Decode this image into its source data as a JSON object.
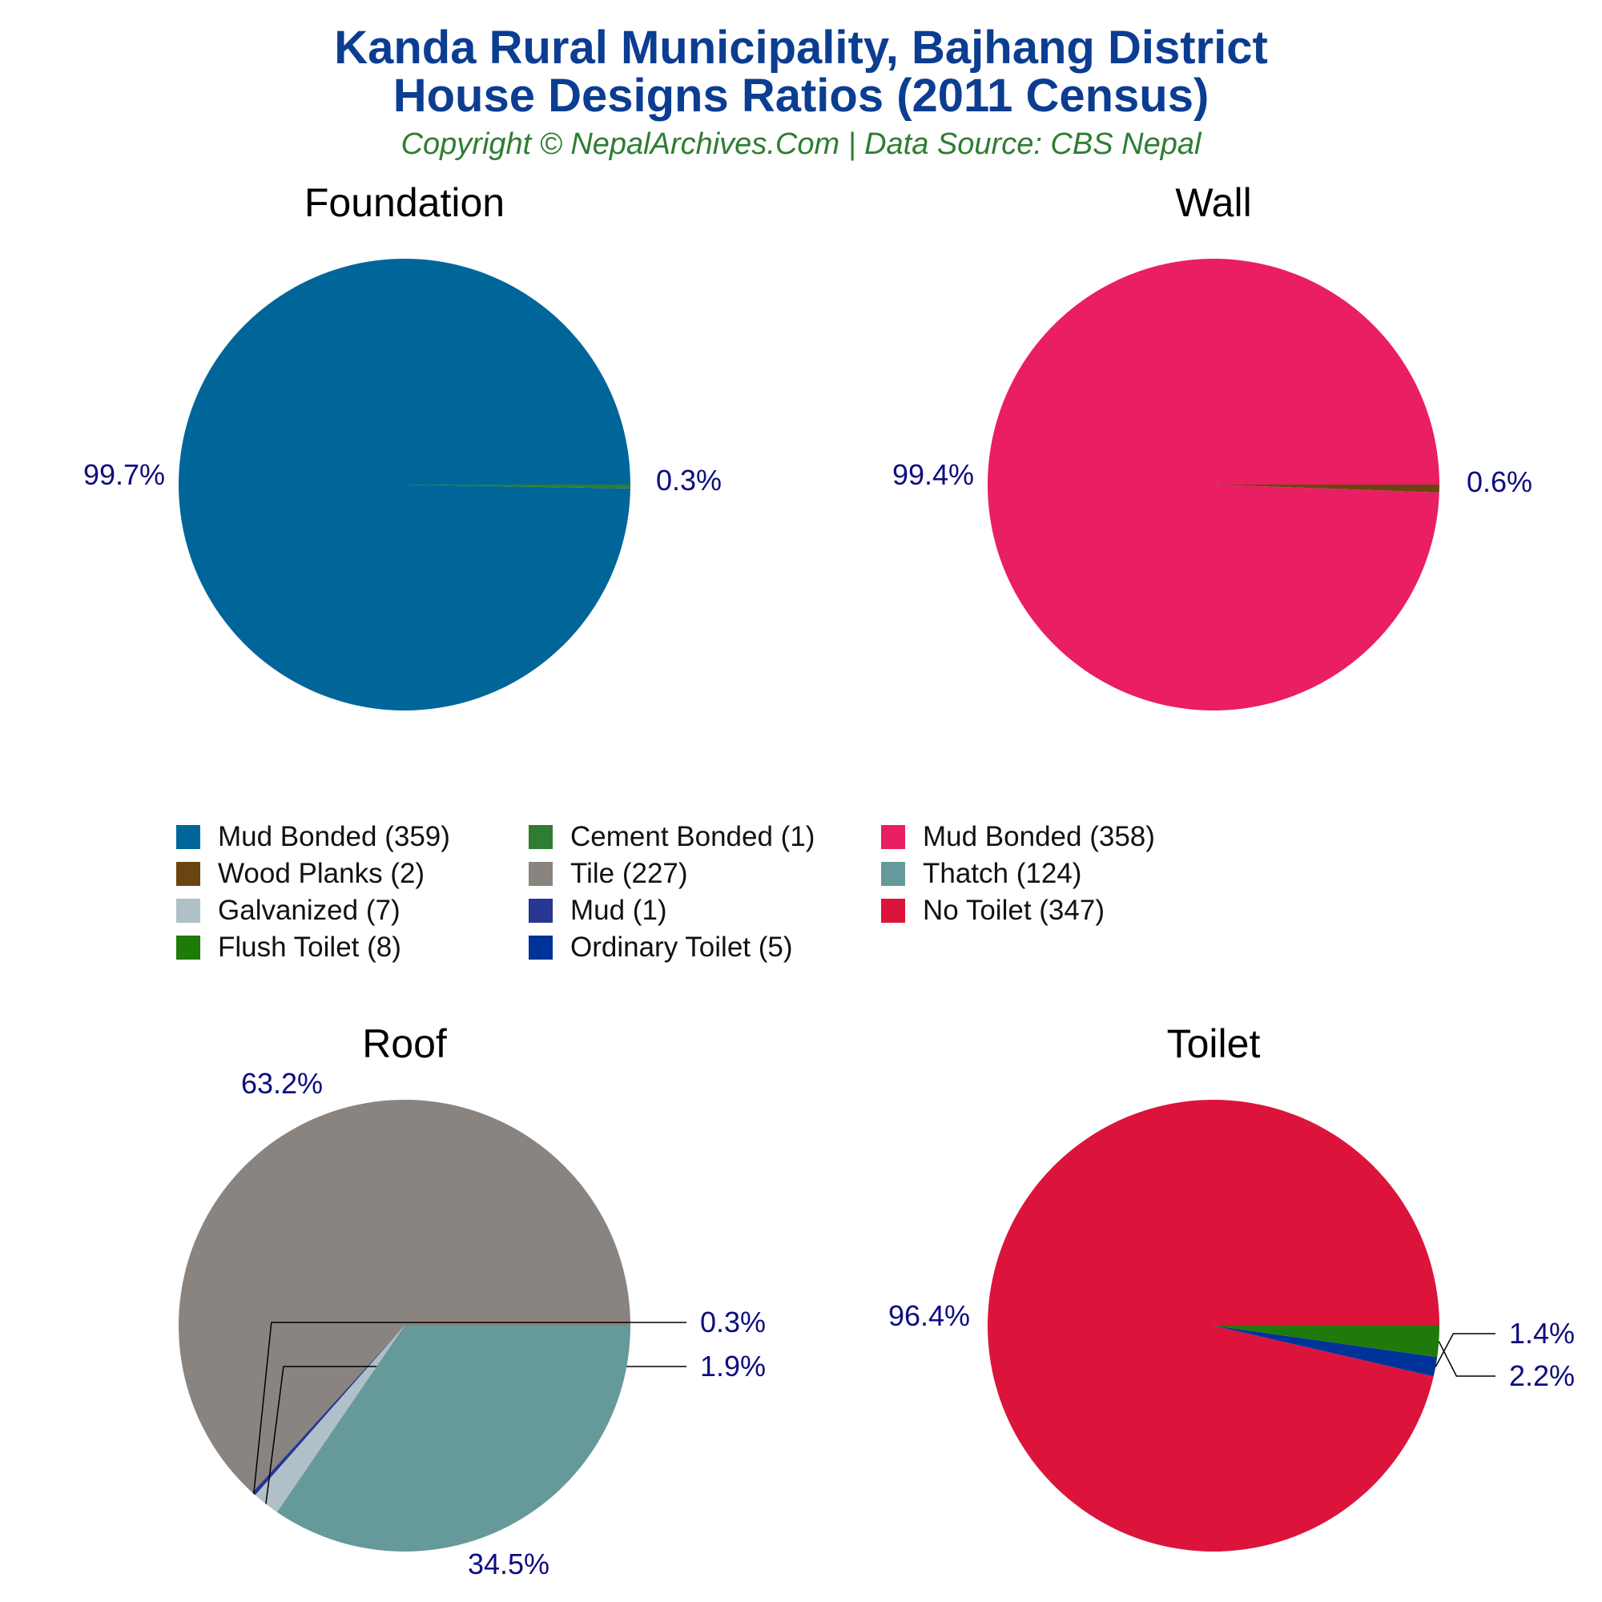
{
  "title_line_1": "Kanda Rural Municipality, Bajhang District",
  "title_line_2": "House Designs Ratios (2011 Census)",
  "subtitle": "Copyright © NepalArchives.Com | Data Source: CBS Nepal",
  "label_color": "#0D0D80",
  "chart_data": [
    {
      "type": "pie",
      "title": "Foundation",
      "slices": [
        {
          "name": "Mud Bonded",
          "value": 359,
          "color": "#006699",
          "label": "99.7%"
        },
        {
          "name": "Cement Bonded",
          "value": 1,
          "color": "#2E7D32",
          "label": "0.3%"
        }
      ]
    },
    {
      "type": "pie",
      "title": "Wall",
      "slices": [
        {
          "name": "Mud Bonded",
          "value": 358,
          "color": "#E91E63",
          "label": "99.4%"
        },
        {
          "name": "Wood Planks",
          "value": 2,
          "color": "#6B4510",
          "label": "0.6%"
        }
      ]
    },
    {
      "type": "pie",
      "title": "Roof",
      "slices": [
        {
          "name": "Tile",
          "value": 227,
          "color": "#8A8480",
          "label": "63.2%"
        },
        {
          "name": "Mud",
          "value": 1,
          "color": "#283593",
          "label": "0.3%"
        },
        {
          "name": "Galvanized",
          "value": 7,
          "color": "#B0C0C8",
          "label": "1.9%"
        },
        {
          "name": "Thatch",
          "value": 124,
          "color": "#669999",
          "label": "34.5%"
        }
      ]
    },
    {
      "type": "pie",
      "title": "Toilet",
      "slices": [
        {
          "name": "No Toilet",
          "value": 347,
          "color": "#DC143C",
          "label": "96.4%"
        },
        {
          "name": "Ordinary Toilet",
          "value": 5,
          "color": "#003399",
          "label": "1.4%"
        },
        {
          "name": "Flush Toilet",
          "value": 8,
          "color": "#1F7A0A",
          "label": "2.2%"
        }
      ]
    }
  ],
  "legend": {
    "placement": "center",
    "items": [
      {
        "label": "Mud Bonded (359)",
        "color": "#006699"
      },
      {
        "label": "Cement Bonded (1)",
        "color": "#2E7D32"
      },
      {
        "label": "Mud Bonded (358)",
        "color": "#E91E63"
      },
      {
        "label": "Wood Planks (2)",
        "color": "#6B4510"
      },
      {
        "label": "Tile (227)",
        "color": "#8A8480"
      },
      {
        "label": "Thatch (124)",
        "color": "#669999"
      },
      {
        "label": "Galvanized (7)",
        "color": "#B0C0C8"
      },
      {
        "label": "Mud (1)",
        "color": "#283593"
      },
      {
        "label": "No Toilet (347)",
        "color": "#DC143C"
      },
      {
        "label": "Flush Toilet (8)",
        "color": "#1F7A0A"
      },
      {
        "label": "Ordinary Toilet (5)",
        "color": "#003399"
      }
    ]
  }
}
